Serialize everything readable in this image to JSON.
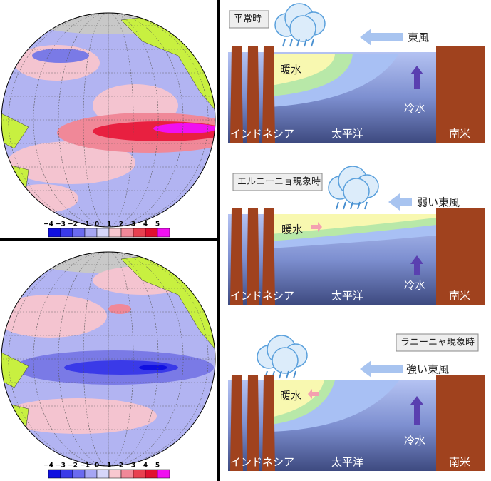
{
  "maps": [
    {
      "colorbar_ticks": [
        "−4",
        "−3",
        "−2",
        "−1",
        "0",
        "1",
        "2",
        "3",
        "4",
        "5"
      ]
    },
    {
      "colorbar_ticks": [
        "−4",
        "−3",
        "−2",
        "−1",
        "0",
        "1",
        "2",
        "3",
        "4",
        "5"
      ]
    }
  ],
  "panels": [
    {
      "title": "平常時",
      "wind": "東風",
      "warm": "暖水",
      "cold": "冷水",
      "west": "インドネシア",
      "ocean": "太平洋",
      "east": "南米"
    },
    {
      "title": "エルニーニョ現象時",
      "wind": "弱い東風",
      "warm": "暖水",
      "cold": "冷水",
      "west": "インドネシア",
      "ocean": "太平洋",
      "east": "南米"
    },
    {
      "title": "ラニーニャ現象時",
      "wind": "強い東風",
      "warm": "暖水",
      "cold": "冷水",
      "west": "インドネシア",
      "ocean": "太平洋",
      "east": "南米"
    }
  ]
}
